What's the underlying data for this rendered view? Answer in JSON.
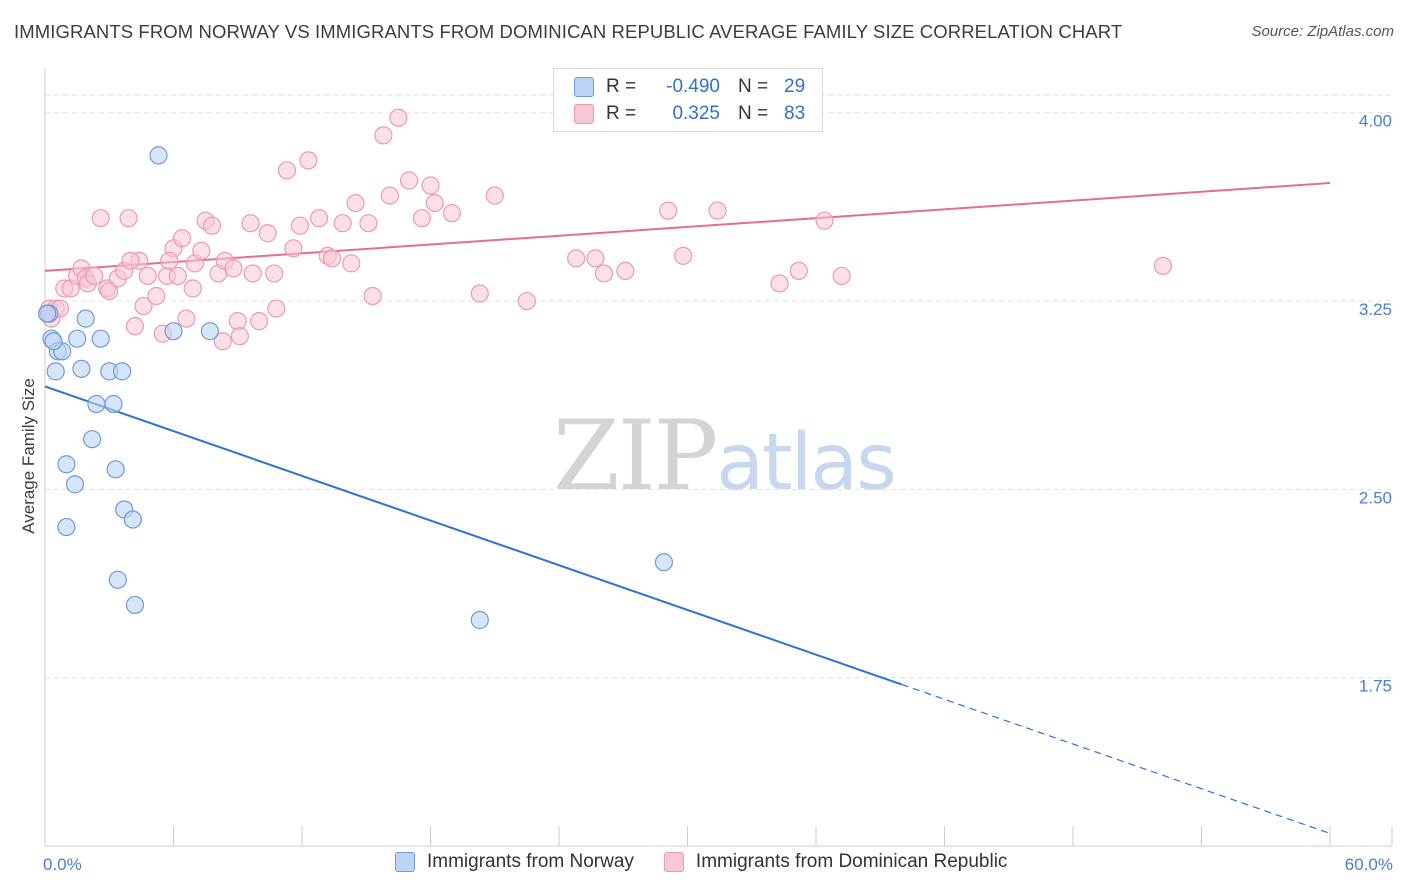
{
  "header": {
    "title": "IMMIGRANTS FROM NORWAY VS IMMIGRANTS FROM DOMINICAN REPUBLIC AVERAGE FAMILY SIZE CORRELATION CHART",
    "source": "Source: ZipAtlas.com"
  },
  "watermark": {
    "zip": "ZIP",
    "atlas": "atlas"
  },
  "legend": {
    "r_label": "R =",
    "n_label": "N =",
    "rows": [
      {
        "r": "-0.490",
        "n": "29"
      },
      {
        "r": "0.325",
        "n": "83"
      }
    ]
  },
  "bottom_legend": {
    "norway": "Immigrants from Norway",
    "dominican": "Immigrants from Dominican Republic"
  },
  "colors": {
    "norway_fill": "#bcd4f5",
    "norway_stroke": "#6f9bd9",
    "norway_line": "#2e72d2",
    "dominican_fill": "#f8c6d4",
    "dominican_stroke": "#ec9ab3",
    "dominican_line": "#e46d98",
    "grid": "#e0e0e0",
    "tick_text": "#4a7fcf"
  },
  "chart_data": {
    "type": "scatter",
    "title": "IMMIGRANTS FROM NORWAY VS IMMIGRANTS FROM DOMINICAN REPUBLIC AVERAGE FAMILY SIZE CORRELATION CHART",
    "xlabel": "",
    "ylabel": "Average Family Size",
    "xlim": [
      0,
      60
    ],
    "ylim": [
      1.08,
      4.17
    ],
    "x_tick_labels": [
      "0.0%",
      "60.0%"
    ],
    "y_ticks": [
      1.75,
      2.5,
      3.25,
      4.0
    ],
    "y_tick_labels": [
      "1.75",
      "2.50",
      "3.25",
      "4.00"
    ],
    "grid": true,
    "legend_position": "top-center",
    "series": [
      {
        "name": "Immigrants from Norway",
        "x": [
          0.2,
          0.3,
          0.5,
          0.6,
          0.8,
          1.0,
          1.4,
          1.5,
          1.7,
          1.9,
          2.2,
          2.6,
          3.0,
          3.3,
          3.4,
          3.6,
          3.7,
          4.2,
          5.3,
          6.0,
          7.7,
          20.3,
          28.9,
          0.1,
          0.4,
          1.0,
          2.4,
          3.2,
          4.1
        ],
        "y": [
          3.2,
          3.1,
          2.97,
          3.05,
          3.05,
          2.6,
          2.52,
          3.1,
          2.98,
          3.18,
          2.7,
          3.1,
          2.97,
          2.58,
          2.14,
          2.97,
          2.42,
          2.04,
          3.83,
          3.13,
          3.13,
          1.98,
          2.21,
          3.2,
          3.09,
          2.35,
          2.84,
          2.84,
          2.38
        ]
      },
      {
        "name": "Immigrants from Dominican Republic",
        "x": [
          0.1,
          0.2,
          0.3,
          0.5,
          0.7,
          0.9,
          1.2,
          1.5,
          1.7,
          1.9,
          2.0,
          2.3,
          2.6,
          2.9,
          3.0,
          3.4,
          3.7,
          3.9,
          4.2,
          4.4,
          4.6,
          4.8,
          5.2,
          5.5,
          5.7,
          6.0,
          6.2,
          6.4,
          6.6,
          6.9,
          7.0,
          7.3,
          7.5,
          7.8,
          8.1,
          8.4,
          8.8,
          9.0,
          9.1,
          9.6,
          10.0,
          10.4,
          10.7,
          11.3,
          11.6,
          11.9,
          12.3,
          12.8,
          13.2,
          13.9,
          14.3,
          14.5,
          15.1,
          15.3,
          15.8,
          16.5,
          17.0,
          17.6,
          18.2,
          19.0,
          20.3,
          21.0,
          22.5,
          24.8,
          25.7,
          26.1,
          27.1,
          29.1,
          29.8,
          31.4,
          34.3,
          35.2,
          36.4,
          37.2,
          18.0,
          16.1,
          13.4,
          10.8,
          9.7,
          8.3,
          5.8,
          4.0,
          52.2
        ],
        "y": [
          3.2,
          3.22,
          3.18,
          3.22,
          3.22,
          3.3,
          3.3,
          3.35,
          3.38,
          3.34,
          3.32,
          3.35,
          3.58,
          3.3,
          3.29,
          3.34,
          3.37,
          3.58,
          3.15,
          3.41,
          3.23,
          3.35,
          3.27,
          3.12,
          3.35,
          3.46,
          3.35,
          3.5,
          3.18,
          3.3,
          3.4,
          3.45,
          3.57,
          3.55,
          3.36,
          3.41,
          3.38,
          3.17,
          3.11,
          3.56,
          3.17,
          3.52,
          3.36,
          3.77,
          3.46,
          3.55,
          3.81,
          3.58,
          3.43,
          3.56,
          3.4,
          3.64,
          3.56,
          3.27,
          3.91,
          3.98,
          3.73,
          3.58,
          3.64,
          3.6,
          3.28,
          3.67,
          3.25,
          3.42,
          3.42,
          3.36,
          3.37,
          3.61,
          3.43,
          3.61,
          3.32,
          3.37,
          3.57,
          3.35,
          3.71,
          3.67,
          3.42,
          3.22,
          3.36,
          3.09,
          3.41,
          3.41,
          3.39
        ]
      }
    ],
    "trend_lines": [
      {
        "name": "Immigrants from Norway",
        "solid_x": [
          0,
          40
        ],
        "y_at_0": 2.91,
        "y_at_60": 1.13
      },
      {
        "name": "Immigrants from Dominican Republic",
        "x": [
          0,
          60
        ],
        "y_at_0": 3.37,
        "y_at_60": 3.72
      }
    ]
  }
}
